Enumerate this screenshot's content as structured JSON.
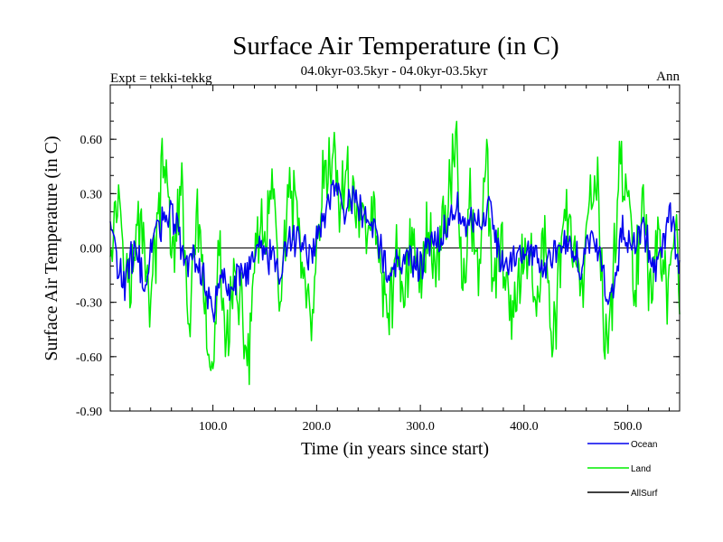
{
  "chart_data": {
    "type": "line",
    "title": "Surface Air Temperature (in C)",
    "subtitle": "04.0kyr-03.5kyr - 04.0kyr-03.5kyr",
    "left_label": "Expt = tekki-tekkg",
    "right_label": "Ann",
    "xlabel": "Time (in years since start)",
    "ylabel": "Surface Air Temperature (in C)",
    "xlim": [
      1,
      550
    ],
    "ylim": [
      -0.9,
      0.9
    ],
    "xticks": [
      100,
      200,
      300,
      400,
      500
    ],
    "xtick_labels": [
      "100.0",
      "200.0",
      "300.0",
      "400.0",
      "500.0"
    ],
    "yticks": [
      -0.9,
      -0.6,
      -0.3,
      0.0,
      0.3,
      0.6
    ],
    "ytick_labels": [
      "-0.90",
      "-0.60",
      "-0.30",
      "0.00",
      "0.30",
      "0.60"
    ],
    "zero_line": true,
    "grid": false,
    "legend_position": "bottom-right",
    "series": [
      {
        "name": "Land",
        "color": "#00ee00",
        "anchors": [
          [
            1,
            0.1
          ],
          [
            10,
            0.3
          ],
          [
            20,
            -0.25
          ],
          [
            30,
            0.2
          ],
          [
            40,
            -0.3
          ],
          [
            50,
            0.35
          ],
          [
            55,
            0.4
          ],
          [
            62,
            -0.05
          ],
          [
            70,
            0.3
          ],
          [
            78,
            -0.5
          ],
          [
            85,
            0.25
          ],
          [
            92,
            -0.4
          ],
          [
            100,
            -0.78
          ],
          [
            105,
            0.0
          ],
          [
            112,
            -0.5
          ],
          [
            120,
            -0.2
          ],
          [
            130,
            -0.45
          ],
          [
            135,
            -0.62
          ],
          [
            140,
            0.0
          ],
          [
            150,
            0.05
          ],
          [
            158,
            0.3
          ],
          [
            165,
            -0.3
          ],
          [
            172,
            0.2
          ],
          [
            180,
            0.25
          ],
          [
            188,
            -0.2
          ],
          [
            195,
            -0.52
          ],
          [
            205,
            0.3
          ],
          [
            212,
            0.4
          ],
          [
            218,
            0.55
          ],
          [
            222,
            0.2
          ],
          [
            230,
            0.4
          ],
          [
            238,
            0.25
          ],
          [
            245,
            0.1
          ],
          [
            255,
            0.2
          ],
          [
            262,
            -0.2
          ],
          [
            270,
            -0.32
          ],
          [
            278,
            -0.05
          ],
          [
            285,
            -0.2
          ],
          [
            292,
            0.05
          ],
          [
            300,
            -0.2
          ],
          [
            308,
            0.15
          ],
          [
            315,
            -0.15
          ],
          [
            320,
            0.1
          ],
          [
            328,
            0.3
          ],
          [
            335,
            0.68
          ],
          [
            340,
            -0.3
          ],
          [
            348,
            0.25
          ],
          [
            356,
            -0.1
          ],
          [
            364,
            0.45
          ],
          [
            370,
            -0.3
          ],
          [
            378,
            0.1
          ],
          [
            385,
            -0.4
          ],
          [
            395,
            -0.25
          ],
          [
            405,
            0.1
          ],
          [
            412,
            -0.35
          ],
          [
            420,
            0.1
          ],
          [
            427,
            -0.58
          ],
          [
            435,
            -0.1
          ],
          [
            440,
            0.3
          ],
          [
            448,
            -0.05
          ],
          [
            455,
            -0.3
          ],
          [
            462,
            0.1
          ],
          [
            470,
            0.45
          ],
          [
            478,
            -0.55
          ],
          [
            485,
            -0.3
          ],
          [
            492,
            0.55
          ],
          [
            500,
            0.2
          ],
          [
            508,
            -0.2
          ],
          [
            515,
            0.35
          ],
          [
            522,
            -0.3
          ],
          [
            530,
            0.15
          ],
          [
            538,
            -0.3
          ],
          [
            545,
            0.1
          ],
          [
            550,
            -0.2
          ]
        ]
      },
      {
        "name": "Ocean",
        "color": "#0000ee",
        "anchors": [
          [
            1,
            0.15
          ],
          [
            8,
            -0.1
          ],
          [
            15,
            -0.2
          ],
          [
            25,
            0.0
          ],
          [
            35,
            -0.2
          ],
          [
            45,
            0.1
          ],
          [
            55,
            0.2
          ],
          [
            65,
            0.15
          ],
          [
            72,
            -0.1
          ],
          [
            80,
            -0.05
          ],
          [
            90,
            -0.15
          ],
          [
            100,
            -0.35
          ],
          [
            108,
            -0.15
          ],
          [
            115,
            -0.2
          ],
          [
            125,
            -0.15
          ],
          [
            135,
            -0.1
          ],
          [
            145,
            0.0
          ],
          [
            155,
            -0.05
          ],
          [
            165,
            -0.1
          ],
          [
            175,
            0.05
          ],
          [
            185,
            0.05
          ],
          [
            195,
            -0.05
          ],
          [
            205,
            0.15
          ],
          [
            212,
            0.25
          ],
          [
            218,
            0.38
          ],
          [
            225,
            0.2
          ],
          [
            232,
            0.28
          ],
          [
            240,
            0.2
          ],
          [
            250,
            0.15
          ],
          [
            260,
            0.05
          ],
          [
            270,
            -0.15
          ],
          [
            280,
            -0.05
          ],
          [
            290,
            -0.05
          ],
          [
            300,
            -0.1
          ],
          [
            310,
            0.0
          ],
          [
            320,
            0.05
          ],
          [
            330,
            0.15
          ],
          [
            336,
            0.25
          ],
          [
            342,
            0.1
          ],
          [
            350,
            0.15
          ],
          [
            360,
            0.1
          ],
          [
            366,
            0.25
          ],
          [
            375,
            -0.05
          ],
          [
            385,
            -0.1
          ],
          [
            395,
            -0.05
          ],
          [
            405,
            0.0
          ],
          [
            415,
            -0.1
          ],
          [
            425,
            -0.05
          ],
          [
            435,
            0.05
          ],
          [
            445,
            0.0
          ],
          [
            455,
            -0.1
          ],
          [
            465,
            0.05
          ],
          [
            475,
            -0.1
          ],
          [
            480,
            -0.35
          ],
          [
            488,
            -0.15
          ],
          [
            495,
            0.1
          ],
          [
            505,
            0.0
          ],
          [
            515,
            0.1
          ],
          [
            525,
            -0.1
          ],
          [
            535,
            0.05
          ],
          [
            542,
            0.2
          ],
          [
            550,
            -0.1
          ]
        ]
      },
      {
        "name": "AllSurf",
        "color": "#000000",
        "anchors": []
      }
    ]
  }
}
